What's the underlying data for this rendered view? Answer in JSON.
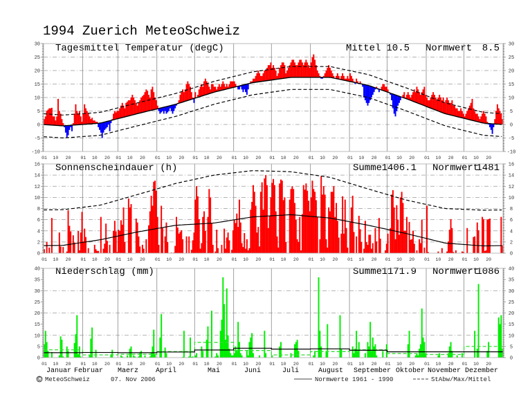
{
  "title": "1994  Zuerich MeteoSchweiz",
  "months": [
    "Januar",
    "Februar",
    "Maerz",
    "April",
    "Mai",
    "Juni",
    "Juli",
    "August",
    "September",
    "Oktober",
    "November",
    "Dezember"
  ],
  "day_ticks": [
    "01",
    "10",
    "20"
  ],
  "colors": {
    "above": "#ff0000",
    "below": "#0000ff",
    "sun": "#ff0000",
    "precip": "#00ee00",
    "precip_mean": "#33dd33",
    "grid": "#999999",
    "normal": "#000000"
  },
  "footer": {
    "copyright_symbol": "©",
    "copyright": "MeteoSchweiz",
    "date": "07. Nov 2006",
    "legend_normal": "Normwerte 1961 - 1990",
    "legend_dashed": "StAbw/Max/Mittel"
  },
  "chart_data": [
    {
      "type": "bar",
      "title": "Tagesmittel Temperatur (degC)",
      "stat_label": "Mittel",
      "stat_value": "10.5",
      "norm_label": "Normwert",
      "norm_value": "8.5",
      "ylim": [
        -10,
        30
      ],
      "yticks": [
        -10,
        -5,
        0,
        5,
        10,
        15,
        20,
        25,
        30
      ],
      "grid": [
        -5,
        0,
        5,
        10,
        15,
        20,
        25
      ],
      "minor_step": 1,
      "normal_monthly": [
        -0.5,
        0.5,
        4,
        7.5,
        12,
        15.5,
        17.5,
        17.5,
        14.5,
        9.5,
        4,
        0.5
      ],
      "upper_offset": 4,
      "lower_offset": -4.5,
      "daily": [
        [
          2,
          3,
          5,
          5.5,
          6,
          6,
          6.2,
          3,
          3,
          1.5,
          3,
          9.5,
          5,
          4,
          2,
          0.5,
          -1,
          -3,
          -5,
          -4,
          -2,
          -1,
          -2.5,
          0.5,
          4,
          7.5,
          5,
          4,
          5,
          3,
          1
        ],
        [
          4,
          7.5,
          6,
          5,
          4,
          3,
          2,
          2.5,
          1.5,
          1.5,
          1,
          1,
          -1,
          -2,
          -3,
          -5,
          -3,
          -2,
          -1.5,
          -1,
          0,
          -2.5,
          0.5,
          2,
          4,
          5,
          4.5,
          5
        ],
        [
          5,
          6,
          7,
          8,
          7,
          6,
          8,
          8.5,
          9,
          9,
          10,
          11,
          10,
          9,
          8,
          7,
          8,
          9,
          10,
          10.5,
          11,
          12,
          13,
          12.5,
          11,
          10,
          13,
          14,
          12,
          10,
          9
        ],
        [
          7,
          5,
          4,
          4.5,
          5,
          4,
          5,
          4,
          4.5,
          5,
          6,
          5,
          4,
          5,
          6,
          7,
          8,
          9,
          11,
          12,
          13,
          12,
          13,
          15,
          16,
          15,
          14,
          12,
          10,
          8
        ],
        [
          12,
          10,
          11,
          13,
          14,
          15,
          14,
          16,
          17,
          16,
          15,
          14,
          13,
          15,
          15,
          14,
          14,
          13,
          14,
          15,
          14,
          15,
          16,
          15,
          14,
          15,
          14,
          15,
          16,
          16,
          16
        ],
        [
          16,
          15,
          14,
          13,
          13,
          14,
          13,
          12,
          13,
          12,
          11,
          13,
          15,
          16,
          16,
          17,
          17,
          18,
          19,
          20,
          19,
          18,
          18,
          19,
          20,
          20,
          21,
          22,
          22,
          23
        ],
        [
          21,
          22,
          21,
          20,
          18,
          19,
          21,
          22,
          23,
          23,
          22,
          19,
          20,
          21,
          22,
          23,
          24,
          24,
          23,
          22,
          22,
          23,
          24,
          24,
          23,
          22,
          23,
          24,
          23,
          22,
          21
        ],
        [
          23,
          25,
          26,
          24,
          22,
          20,
          19,
          18,
          17,
          17,
          18,
          19,
          20,
          21,
          22,
          21,
          20,
          19,
          18,
          17,
          18,
          19,
          18,
          17,
          18,
          19,
          18,
          17,
          17,
          18,
          17
        ],
        [
          19,
          18,
          17,
          16,
          15,
          17,
          16,
          15,
          16,
          15,
          14,
          10,
          9,
          8,
          7,
          8,
          9,
          10,
          11,
          12,
          13,
          14,
          13,
          12,
          13,
          14,
          15,
          15,
          14,
          14
        ],
        [
          13,
          12,
          11,
          9,
          6,
          4,
          3,
          5,
          7,
          8,
          9,
          10,
          11,
          12,
          10,
          11,
          12,
          11,
          10,
          11,
          12,
          13,
          12,
          14,
          13,
          12,
          11,
          12,
          13,
          14,
          11
        ],
        [
          10,
          9,
          9,
          10,
          11,
          12,
          11,
          10,
          9,
          10,
          11,
          10,
          9,
          10,
          8,
          9,
          10,
          9,
          8,
          8,
          9,
          7,
          7,
          6,
          6,
          5,
          5,
          6,
          5,
          4
        ],
        [
          3,
          4,
          5,
          6,
          7,
          8,
          9.5,
          6,
          5,
          4,
          4,
          3,
          2,
          3,
          4,
          5,
          4,
          3,
          1,
          0,
          -1,
          -2,
          -3.5,
          -1,
          2,
          5,
          7.5,
          6,
          5,
          4,
          2
        ]
      ]
    },
    {
      "type": "bar",
      "title": "Sonnenscheindauer (h)",
      "stat_label": "Summe",
      "stat_value": "1406.1",
      "norm_label": "Normwert",
      "norm_value": "1481",
      "ylim": [
        0,
        16
      ],
      "yticks": [
        0,
        2,
        4,
        6,
        8,
        10,
        12,
        14,
        16
      ],
      "grid": [
        2,
        4,
        6,
        8,
        10,
        12,
        14
      ],
      "minor_step": 0.5,
      "normal_monthly": [
        1.4,
        2.4,
        3.8,
        5,
        5.4,
        6.5,
        6.9,
        6.3,
        5,
        3.5,
        1.8,
        1.3
      ],
      "max_monthly": [
        7.8,
        8.6,
        10.5,
        12.5,
        14,
        14.8,
        14.6,
        13.6,
        11.5,
        9.5,
        8,
        7.7
      ],
      "daily": [
        [
          0.7,
          0,
          2,
          0,
          1,
          0,
          6.3,
          0,
          0,
          0,
          0,
          0,
          3.7,
          1.2,
          0,
          1.1,
          0,
          0,
          0.3,
          7.7,
          4.9,
          3.9,
          0,
          3.2,
          1.9,
          0,
          0,
          4,
          0.5,
          3.7,
          7.4
        ],
        [
          2.1,
          4.4,
          2.9,
          0,
          0.9,
          0,
          0,
          0,
          0,
          1.5,
          0.7,
          0.4,
          0.4,
          0,
          6.5,
          0,
          0.8,
          1.7,
          5.3,
          2.2,
          0,
          1.5,
          0,
          0,
          4,
          5.8,
          3.9,
          0.2
        ],
        [
          4.2,
          4,
          5.9,
          5.1,
          8.2,
          2,
          0,
          0,
          9.8,
          8.2,
          8.8,
          0,
          0,
          0,
          6.2,
          5.5,
          3,
          1.2,
          0,
          1.5,
          0.8,
          0,
          2.5,
          0,
          5,
          7.5,
          10.3,
          8.5,
          12.8,
          13,
          11.2
        ],
        [
          6.5,
          1.5,
          0,
          8.5,
          4.5,
          0,
          3,
          5.5,
          2,
          0,
          0,
          0.1,
          0,
          0.1,
          1.3,
          6.5,
          4.6,
          3.5,
          3.8,
          4.1,
          2.5,
          0,
          0,
          3,
          0,
          3,
          0,
          0.6,
          2.3,
          3.7
        ],
        [
          9.6,
          12,
          10.2,
          6.1,
          0.8,
          1.8,
          6.5,
          7.5,
          4,
          0,
          6.5,
          11.5,
          10,
          5.4,
          1.5,
          0,
          0.3,
          4.2,
          0.9,
          0,
          0,
          1.5,
          0,
          4.4,
          0.8,
          2.8,
          3.7,
          2.3,
          0,
          0.6,
          4.1
        ],
        [
          6,
          5.4,
          7.1,
          4.7,
          9.6,
          5.5,
          1.8,
          1.1,
          3.6,
          0.8,
          2.5,
          0.5,
          0.9,
          7.8,
          9.2,
          12.2,
          11,
          8.5,
          3.7,
          4.7,
          1.2,
          11,
          12.7,
          7.8,
          13.4,
          14,
          12.2,
          4.5,
          6.7,
          10
        ],
        [
          12.6,
          13.3,
          12.2,
          7.5,
          3,
          1,
          12.5,
          13.2,
          13,
          9.5,
          10,
          2,
          0,
          0,
          9.6,
          11.5,
          12,
          11.5,
          9,
          6,
          2.5,
          2,
          6.5,
          0.5,
          7,
          12.2,
          11.4,
          12.5,
          11.2,
          9.4,
          7.5
        ],
        [
          10,
          13,
          11.5,
          11,
          9.5,
          6.5,
          0,
          2.5,
          13.8,
          10.5,
          12,
          10.5,
          2.5,
          1,
          8.2,
          7.5,
          11,
          11,
          12,
          6.5,
          9,
          5.8,
          2.8,
          0,
          3.5,
          10.2,
          3.5,
          9.6,
          4.5,
          1,
          0
        ],
        [
          5.5,
          8.2,
          10.3,
          3.8,
          0,
          3,
          0,
          6.7,
          4.3,
          2,
          0,
          0.8,
          5.8,
          2,
          1.5,
          3.3,
          3.3,
          0.8,
          1.8,
          0,
          4.5,
          2.1,
          0,
          6.3,
          2.6,
          0,
          0,
          0,
          0.5,
          1.7
        ],
        [
          3.5,
          0,
          4.5,
          10.5,
          11.3,
          8.2,
          2.5,
          8.6,
          6,
          3.3,
          10,
          11,
          9,
          4,
          4,
          6.5,
          0,
          5.6,
          2.4,
          2.5,
          4,
          1.7,
          0,
          0.5,
          0,
          2.5,
          1.8,
          6,
          0,
          1,
          0
        ],
        [
          8.5,
          0.2,
          0,
          0,
          0,
          0,
          0,
          0,
          0,
          0.3,
          0,
          0,
          0.9,
          0,
          0,
          0,
          0.3,
          2.1,
          4.2,
          6.1,
          4.5,
          0.2,
          0,
          0.5,
          0,
          0,
          0,
          0,
          0.3,
          0.2
        ],
        [
          0,
          0,
          4.5,
          0,
          0,
          0,
          0,
          2.9,
          3,
          0,
          5.5,
          4.1,
          0,
          0,
          6.5,
          6.1,
          0.4,
          0.5,
          6,
          6.1,
          6.2,
          0,
          0,
          0,
          0,
          0,
          0,
          0,
          0,
          6.5,
          1.4
        ]
      ]
    },
    {
      "type": "bar",
      "title": "Niederschlag (mm)",
      "stat_label": "Summe",
      "stat_value": "1171.9",
      "norm_label": "Normwert",
      "norm_value": "1086",
      "ylim": [
        0,
        40
      ],
      "yticks": [
        0,
        5,
        10,
        15,
        20,
        25,
        30,
        35,
        40
      ],
      "grid": [
        10,
        20,
        30
      ],
      "minor_step": 1,
      "normal_monthly": [
        2.2,
        2.3,
        2.2,
        2.5,
        3.4,
        4.2,
        3.8,
        3.9,
        3.3,
        2.6,
        2.6,
        2.6
      ],
      "mean_monthly": [
        3.5,
        1.2,
        1.5,
        2.7,
        6.8,
        3.2,
        1.2,
        2.7,
        3.5,
        1.8,
        1.4,
        5.0
      ],
      "daily": [
        [
          6,
          12,
          7,
          3,
          0,
          0,
          2.5,
          0,
          0,
          0,
          0,
          0,
          1,
          9.5,
          8,
          0.5,
          0,
          0,
          5,
          3,
          0,
          0,
          0,
          0,
          6.5,
          10.5,
          19,
          1.5,
          5,
          0.5,
          0
        ],
        [
          0,
          0,
          0,
          0,
          0,
          1,
          8.5,
          13.5,
          0,
          0,
          3.5,
          0,
          0,
          0,
          0,
          0,
          0,
          0,
          0,
          0,
          0,
          0,
          1.5,
          3.5,
          0,
          0,
          0,
          0
        ],
        [
          0,
          0,
          1,
          0.5,
          0,
          0,
          0,
          1,
          0,
          4,
          5,
          0,
          1,
          0.5,
          0,
          0,
          0.5,
          2,
          3,
          0,
          0,
          1,
          0,
          0,
          0,
          0.5,
          2,
          5,
          12.5,
          1.5,
          0
        ],
        [
          0,
          0,
          9,
          19.5,
          0,
          0,
          4.5,
          2,
          0,
          0,
          0,
          0,
          0,
          0,
          0,
          0,
          0,
          0,
          0,
          0,
          0.3,
          12,
          0,
          0,
          0,
          0.5,
          9,
          0.3,
          0.5,
          0
        ],
        [
          1,
          2,
          0,
          0,
          0,
          5,
          3,
          0,
          0,
          8,
          14,
          0,
          0,
          21,
          0,
          0,
          0.5,
          2,
          1,
          0,
          12,
          17,
          36,
          24,
          8,
          31,
          10,
          4,
          2,
          1,
          1
        ],
        [
          2,
          5,
          3,
          16,
          7,
          2,
          1,
          0,
          0,
          0,
          3,
          1,
          7,
          9,
          11,
          2,
          0,
          0,
          0,
          0,
          1,
          0,
          0,
          0,
          12,
          2,
          0,
          0,
          0,
          0
        ],
        [
          1,
          0,
          0,
          0,
          0,
          0,
          5,
          7,
          0,
          0,
          0,
          0,
          0,
          0,
          0,
          2,
          0,
          0,
          6,
          7,
          8,
          3,
          0,
          0,
          0,
          0,
          0,
          0,
          0,
          0,
          0
        ],
        [
          0,
          0,
          1,
          3,
          0,
          0,
          36,
          12,
          5,
          0,
          0,
          0,
          3,
          15,
          0,
          0,
          0,
          0,
          0,
          0,
          0,
          0,
          0,
          19,
          4,
          0,
          0,
          0,
          0,
          0,
          0
        ],
        [
          0,
          0,
          5,
          2,
          4,
          12,
          3,
          7,
          0,
          0,
          0,
          0,
          2,
          0,
          7,
          5,
          16,
          3,
          9,
          5,
          6,
          1,
          0,
          0,
          0,
          0,
          3,
          0,
          0,
          6
        ],
        [
          0,
          0,
          0,
          0,
          0,
          0,
          0,
          0,
          0,
          0,
          0,
          0,
          0,
          0,
          0,
          0,
          6,
          12,
          0,
          0,
          0,
          0,
          1,
          2,
          1,
          4,
          6,
          22,
          9,
          7,
          2
        ],
        [
          0,
          0,
          0,
          0,
          0,
          0,
          0,
          0,
          0,
          1,
          2,
          0,
          0,
          0,
          0,
          0,
          0,
          2,
          5,
          7,
          3,
          0,
          0,
          0,
          1,
          0,
          0,
          0,
          2,
          0
        ],
        [
          0,
          0,
          0,
          0,
          0,
          0,
          0,
          0,
          12,
          0,
          4,
          33,
          0,
          0,
          0,
          0,
          0,
          0,
          3,
          7,
          0,
          0,
          0,
          0,
          0,
          0,
          0,
          18,
          15,
          19,
          4
        ]
      ]
    }
  ]
}
